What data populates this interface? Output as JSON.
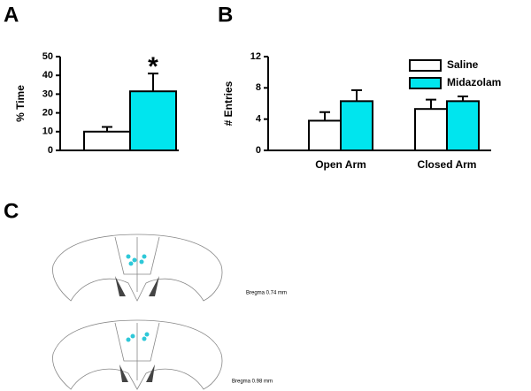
{
  "chart_data": [
    {
      "type": "bar",
      "panel": "A",
      "ylabel": "% Time",
      "categories": [
        null,
        null
      ],
      "values": [
        10,
        31.5
      ],
      "errors": [
        2.5,
        9.5
      ],
      "colors": [
        "#ffffff",
        "#00e5ee"
      ],
      "annotation": "*",
      "ylim": [
        0,
        50
      ],
      "yticks": [
        0,
        10,
        20,
        30,
        40,
        50
      ]
    },
    {
      "type": "grouped-bar",
      "panel": "B",
      "ylabel": "# Entries",
      "categories": [
        "Open Arm",
        "Closed Arm"
      ],
      "series": [
        {
          "name": "Saline",
          "color": "#ffffff",
          "values": [
            3.8,
            5.3
          ],
          "errors": [
            1.1,
            1.2
          ]
        },
        {
          "name": "Midazolam",
          "color": "#00e5ee",
          "values": [
            6.3,
            6.3
          ],
          "errors": [
            1.4,
            0.6
          ]
        }
      ],
      "ylim": [
        0,
        12
      ],
      "yticks": [
        0,
        4,
        8,
        12
      ],
      "legend": "top-right"
    }
  ],
  "panel_c": {
    "label": "C",
    "sections": [
      "Bregma 0.74 mm",
      "Bregma 0.98 mm"
    ]
  }
}
